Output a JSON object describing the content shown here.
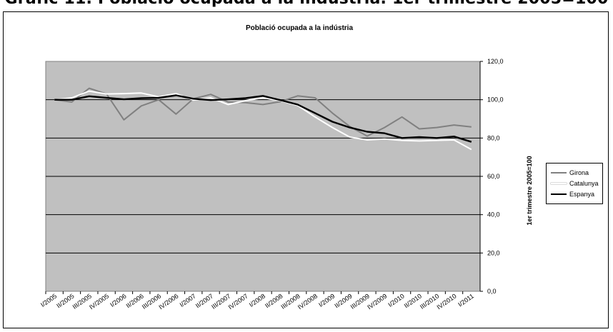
{
  "page": {
    "heading": "Gràfic 11. Població ocupada a la indústria. 1er trimestre 2005=100"
  },
  "chart_data": {
    "type": "line",
    "title": "Població ocupada a la indústria",
    "xlabel": "",
    "ylabel": "1er trimestre 2005=100",
    "ylim": [
      0,
      120
    ],
    "yticks": [
      "0,0",
      "20,0",
      "40,0",
      "60,0",
      "80,0",
      "100,0",
      "120,0"
    ],
    "ytick_values": [
      0,
      20,
      40,
      60,
      80,
      100,
      120
    ],
    "y_axis_side": "right",
    "plot_background": "#c0c0c0",
    "grid": true,
    "legend_position": "right",
    "categories": [
      "I/2005",
      "II/2005",
      "III/2005",
      "IV/2005",
      "I/2006",
      "II/2006",
      "III/2006",
      "IV/2006",
      "I/2007",
      "II/2007",
      "III/2007",
      "IV/2007",
      "I/2008",
      "II/2008",
      "III/2008",
      "IV/2008",
      "I/2009",
      "II/2009",
      "III/2009",
      "IV/2009",
      "I/2010",
      "II/2010",
      "III/2010",
      "IV/2010",
      "I/2011"
    ],
    "series": [
      {
        "name": "Girona",
        "color": "#808080",
        "width": 2,
        "values": [
          100.0,
          98.8,
          106.0,
          103.0,
          89.5,
          96.8,
          100.0,
          92.5,
          100.5,
          102.8,
          98.8,
          98.5,
          97.5,
          99.0,
          102.0,
          101.0,
          93.0,
          86.0,
          81.0,
          85.5,
          91.0,
          84.8,
          85.5,
          86.8,
          85.8
        ]
      },
      {
        "name": "Catalunya",
        "color": "#ffffff",
        "width": 2,
        "values": [
          100.0,
          101.0,
          104.5,
          103.0,
          103.2,
          103.5,
          101.5,
          103.2,
          99.8,
          101.0,
          97.5,
          99.5,
          101.0,
          99.5,
          97.0,
          91.0,
          85.5,
          80.5,
          79.0,
          79.5,
          78.8,
          78.5,
          78.8,
          79.0,
          74.0
        ]
      },
      {
        "name": "Espanya",
        "color": "#000000",
        "width": 2.4,
        "values": [
          100.0,
          100.0,
          101.8,
          101.0,
          100.2,
          100.8,
          101.0,
          102.3,
          100.5,
          99.8,
          100.2,
          100.8,
          102.0,
          99.8,
          97.5,
          93.0,
          88.5,
          85.5,
          83.3,
          82.5,
          80.0,
          80.5,
          80.0,
          80.8,
          78.0
        ]
      }
    ]
  }
}
